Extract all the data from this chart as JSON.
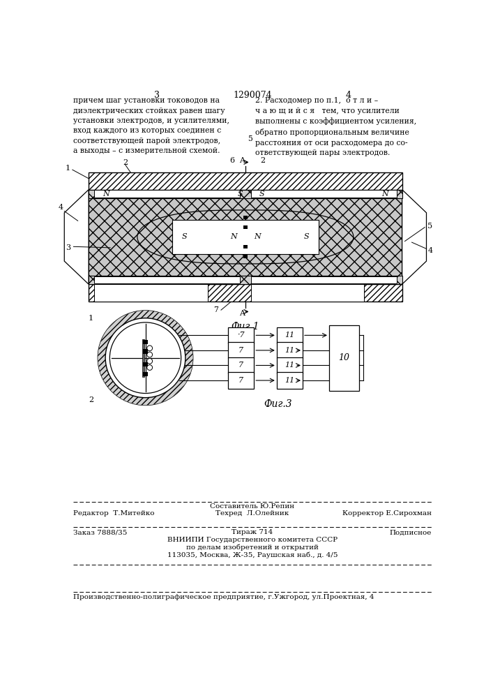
{
  "title": "1290074",
  "page_left": "3",
  "page_right": "4",
  "fig1_caption": "Фиг.1",
  "fig3_caption": "Фиг.3",
  "bg_color": "#ffffff"
}
